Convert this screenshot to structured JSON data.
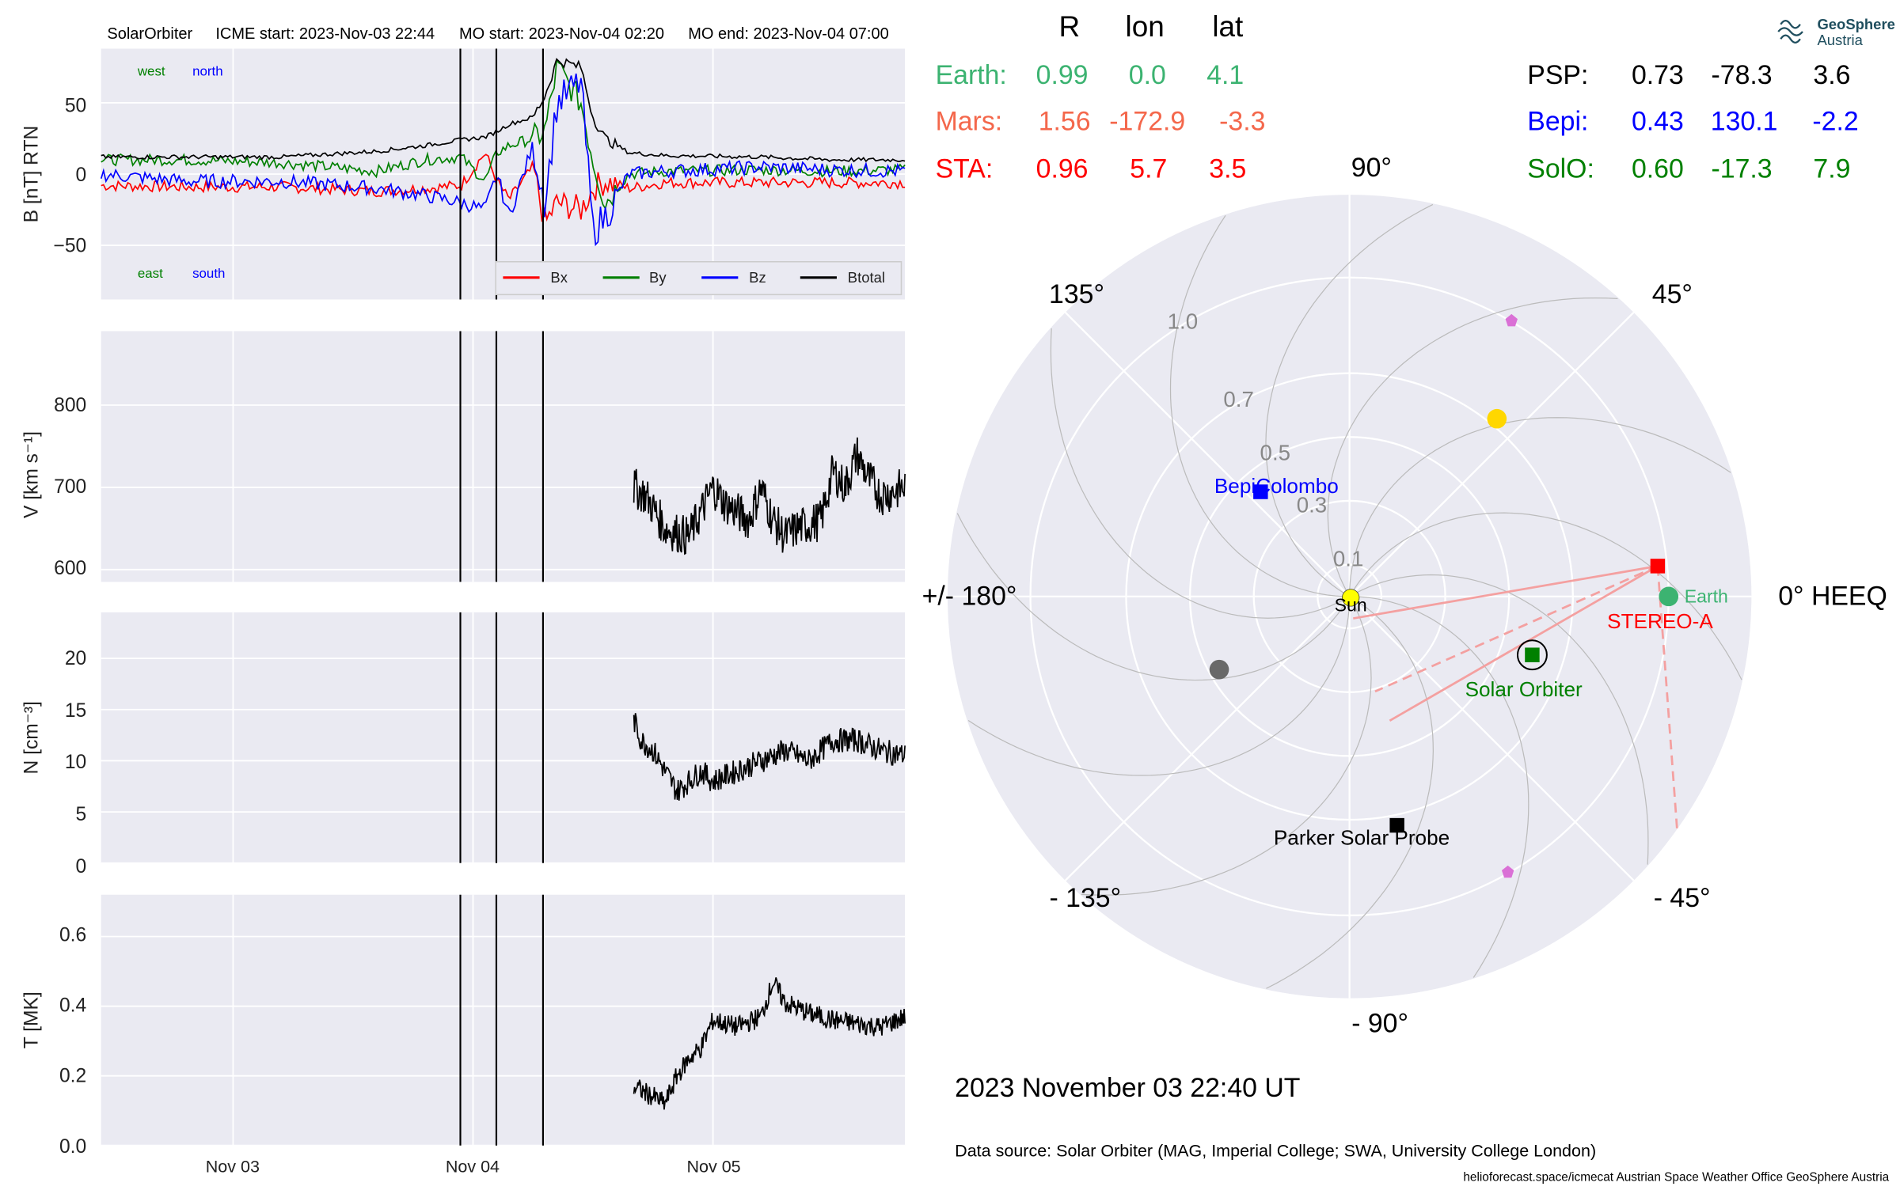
{
  "header": {
    "spacecraft": "SolarOrbiter",
    "icme_start": "ICME start: 2023-Nov-03 22:44",
    "mo_start": "MO start: 2023-Nov-04 02:20",
    "mo_end": "MO end: 2023-Nov-04 07:00"
  },
  "logo": {
    "line1": "GeoSphere",
    "line2": "Austria"
  },
  "positions": {
    "columns": [
      "R",
      "lon",
      "lat"
    ],
    "left": [
      {
        "label": "Earth:",
        "r": "0.99",
        "lon": "0.0",
        "lat": "4.1",
        "color": "#3cb371"
      },
      {
        "label": "Mars:",
        "r": "1.56",
        "lon": "-172.9",
        "lat": "-3.3",
        "color": "#f4674b"
      },
      {
        "label": "STA:",
        "r": "0.96",
        "lon": "5.7",
        "lat": "3.5",
        "color": "#ff0000"
      }
    ],
    "right": [
      {
        "label": "PSP:",
        "r": "0.73",
        "lon": "-78.3",
        "lat": "3.6",
        "color": "#000000"
      },
      {
        "label": "Bepi:",
        "r": "0.43",
        "lon": "130.1",
        "lat": "-2.2",
        "color": "#0000ff"
      },
      {
        "label": "SolO:",
        "r": "0.60",
        "lon": "-17.3",
        "lat": "7.9",
        "color": "#008000"
      }
    ]
  },
  "polar": {
    "angle_labels": {
      "a0": "0° HEEQ",
      "a45": "45°",
      "a90": "90°",
      "a135": "135°",
      "a180": "+/- 180°",
      "am135": "- 135°",
      "am90": "- 90°",
      "am45": "- 45°"
    },
    "radial_labels": [
      "0.1",
      "0.3",
      "0.5",
      "0.7",
      "1.0"
    ],
    "labels": {
      "sun": "Sun",
      "earth": "Earth",
      "stereo": "STEREO-A",
      "solo": "Solar Orbiter",
      "bepi": "BepiColombo",
      "psp": "Parker Solar Probe"
    },
    "colors": {
      "earth": "#3cb371",
      "stereo": "#ff0000",
      "solo": "#008000",
      "bepi": "#0000ff",
      "psp": "#000000",
      "mars": "#696969",
      "venus": "#ffd700",
      "sun": "#ffff00",
      "magenta": "#da70d6"
    }
  },
  "date_label": "2023 November 03  22:40 UT",
  "footer": {
    "source": "Data source: Solar Orbiter (MAG, Imperial College; SWA, University College London)",
    "credits": "helioforecast.space/icmecat   Austrian Space Weather Office   GeoSphere Austria"
  },
  "chart_data": [
    {
      "type": "line",
      "ylabel": "B [nT] RTN",
      "x_ticks": [
        "Nov 03",
        "Nov 04",
        "Nov 05"
      ],
      "x_range_days": [
        2.45,
        5.8
      ],
      "ylim": [
        -88,
        88
      ],
      "y_ticks": [
        "50",
        "0",
        "−50"
      ],
      "annotations": [
        "west",
        "north",
        "east",
        "south"
      ],
      "event_lines": [
        "2023-11-03 22:44",
        "2023-11-04 02:20",
        "2023-11-04 07:00"
      ],
      "legend": [
        "Bx",
        "By",
        "Bz",
        "Btotal"
      ],
      "series": [
        {
          "name": "Bx",
          "color": "#ff0000",
          "x": [
            2.45,
            2.8,
            3.2,
            3.6,
            3.8,
            3.95,
            4.05,
            4.1,
            4.15,
            4.25,
            4.3,
            4.35,
            4.45,
            4.5,
            4.55,
            4.65,
            4.8,
            5.2,
            5.5,
            5.8
          ],
          "values": [
            -8,
            -9,
            -9,
            -12,
            -10,
            -8,
            15,
            -5,
            -18,
            5,
            -35,
            -20,
            -25,
            -10,
            -5,
            -10,
            -6,
            -6,
            -6,
            -6
          ]
        },
        {
          "name": "By",
          "color": "#008000",
          "x": [
            2.45,
            2.8,
            3.2,
            3.6,
            3.8,
            3.95,
            4.05,
            4.1,
            4.15,
            4.25,
            4.3,
            4.35,
            4.45,
            4.5,
            4.55,
            4.65,
            4.8,
            5.2,
            5.5,
            5.8
          ],
          "values": [
            10,
            10,
            8,
            2,
            10,
            12,
            -5,
            15,
            20,
            25,
            30,
            75,
            50,
            10,
            -20,
            0,
            2,
            3,
            2,
            3
          ]
        },
        {
          "name": "Bz",
          "color": "#0000ff",
          "x": [
            2.45,
            2.8,
            3.2,
            3.6,
            3.8,
            3.95,
            4.05,
            4.1,
            4.15,
            4.25,
            4.3,
            4.35,
            4.45,
            4.5,
            4.55,
            4.65,
            4.8,
            5.2,
            5.5,
            5.8
          ],
          "values": [
            0,
            -5,
            -5,
            -10,
            -15,
            -20,
            -25,
            0,
            -30,
            20,
            -20,
            50,
            65,
            -40,
            -30,
            0,
            2,
            5,
            3,
            2
          ]
        },
        {
          "name": "Btotal",
          "color": "#000000",
          "x": [
            2.45,
            2.8,
            3.2,
            3.6,
            3.8,
            3.95,
            4.05,
            4.1,
            4.15,
            4.25,
            4.3,
            4.35,
            4.45,
            4.5,
            4.55,
            4.65,
            4.8,
            5.2,
            5.5,
            5.8
          ],
          "values": [
            12,
            12,
            12,
            16,
            20,
            24,
            26,
            30,
            35,
            40,
            55,
            80,
            75,
            40,
            25,
            15,
            13,
            12,
            10,
            10
          ]
        }
      ]
    },
    {
      "type": "line",
      "ylabel": "V [km s⁻¹]",
      "ylim": [
        585,
        890
      ],
      "y_ticks": [
        "800",
        "700",
        "600"
      ],
      "series": [
        {
          "name": "V",
          "x": [
            4.67,
            4.72,
            4.8,
            4.9,
            5.0,
            5.05,
            5.15,
            5.2,
            5.25,
            5.3,
            5.35,
            5.45,
            5.5,
            5.55,
            5.6,
            5.65,
            5.7,
            5.8
          ],
          "values": [
            700,
            690,
            650,
            640,
            700,
            680,
            660,
            700,
            660,
            640,
            650,
            660,
            720,
            700,
            740,
            710,
            690,
            700
          ]
        }
      ]
    },
    {
      "type": "line",
      "ylabel": "N [cm⁻³]",
      "ylim": [
        0,
        24.5
      ],
      "y_ticks": [
        "20",
        "15",
        "10",
        "5",
        "0"
      ],
      "series": [
        {
          "name": "N",
          "x": [
            4.67,
            4.7,
            4.75,
            4.8,
            4.85,
            4.9,
            4.95,
            5.0,
            5.1,
            5.2,
            5.3,
            5.4,
            5.5,
            5.6,
            5.7,
            5.8
          ],
          "values": [
            14,
            12,
            11,
            9,
            7,
            8,
            9,
            8,
            9,
            10,
            11,
            10,
            12,
            12,
            11,
            10.5
          ]
        }
      ]
    },
    {
      "type": "line",
      "ylabel": "T [MK]",
      "ylim": [
        0,
        0.72
      ],
      "y_ticks": [
        "0.6",
        "0.4",
        "0.2",
        "0.0"
      ],
      "series": [
        {
          "name": "T",
          "x": [
            4.67,
            4.75,
            4.8,
            4.85,
            4.9,
            4.95,
            5.0,
            5.05,
            5.1,
            5.2,
            5.25,
            5.3,
            5.4,
            5.5,
            5.6,
            5.7,
            5.8
          ],
          "values": [
            0.17,
            0.14,
            0.12,
            0.2,
            0.25,
            0.28,
            0.36,
            0.35,
            0.34,
            0.37,
            0.47,
            0.41,
            0.38,
            0.36,
            0.35,
            0.34,
            0.37
          ]
        }
      ]
    }
  ]
}
